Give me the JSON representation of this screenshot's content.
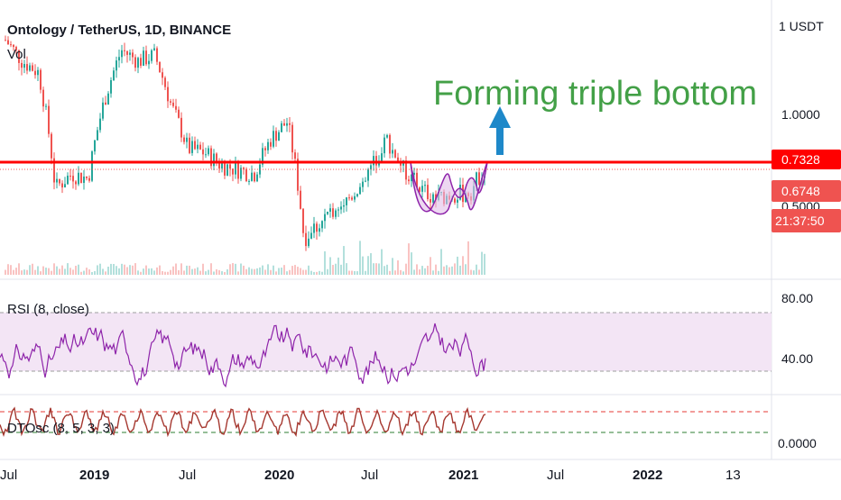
{
  "header": {
    "symbol": "Ontology / TetherUS, 1D, BINANCE",
    "vol_label": "Vol"
  },
  "annotation": {
    "text": "Forming triple bottom",
    "color": "#43a047"
  },
  "colors": {
    "up": "#26a69a",
    "down": "#ef5350",
    "resistance": "#ff0000",
    "rsi": "#8e24aa",
    "rsi_band": "#f3e5f5",
    "dt_line": "#a5372f",
    "pattern_fill": "#e1bee7",
    "arrow": "#1e88c9"
  },
  "price_axis": {
    "ticks": [
      "1 USDT",
      "1.0000"
    ],
    "hidden_tick": "0.5000"
  },
  "price_tags": [
    {
      "label": "0.7328",
      "color": "#ff0000"
    },
    {
      "label": "0.6748",
      "color": "#ef5350"
    },
    {
      "label": "21:37:50",
      "color": "#ef5350"
    }
  ],
  "rsi": {
    "label": "RSI (8, close)",
    "ticks": [
      "80.00",
      "40.00"
    ]
  },
  "dtosc": {
    "label": "DTOsc (8, 5, 3, 3)",
    "tick": "0.0000"
  },
  "time_axis": {
    "labels": [
      "Jul",
      "2019",
      "Jul",
      "2020",
      "Jul",
      "2021",
      "Jul",
      "2022",
      "13"
    ]
  },
  "chart_data": {
    "type": "line",
    "title": "Ontology / TetherUS, 1D, BINANCE",
    "x": [
      "2018-07",
      "2018-09",
      "2018-10",
      "2018-12",
      "2019-01",
      "2019-02",
      "2019-03",
      "2019-04",
      "2019-05",
      "2019-06",
      "2019-07",
      "2019-08",
      "2019-09",
      "2019-10",
      "2019-11",
      "2019-12",
      "2020-01",
      "2020-02",
      "2020-03",
      "2020-04",
      "2020-05",
      "2020-06",
      "2020-07",
      "2020-08",
      "2020-09",
      "2020-10",
      "2020-11",
      "2020-12",
      "2021-01",
      "2021-02"
    ],
    "series": [
      {
        "values": [
          1.6,
          1.4,
          1.3,
          0.62,
          0.68,
          0.66,
          1.1,
          1.5,
          1.4,
          1.45,
          1.05,
          0.8,
          0.78,
          0.72,
          0.7,
          0.68,
          0.85,
          0.95,
          0.45,
          0.5,
          0.55,
          0.6,
          0.7,
          0.85,
          0.7,
          0.62,
          0.58,
          0.6,
          0.6,
          0.73
        ]
      }
    ],
    "resistance": 0.7328,
    "last_price": 0.6748,
    "rsi_levels": [
      80,
      40
    ],
    "yscale": "log"
  }
}
